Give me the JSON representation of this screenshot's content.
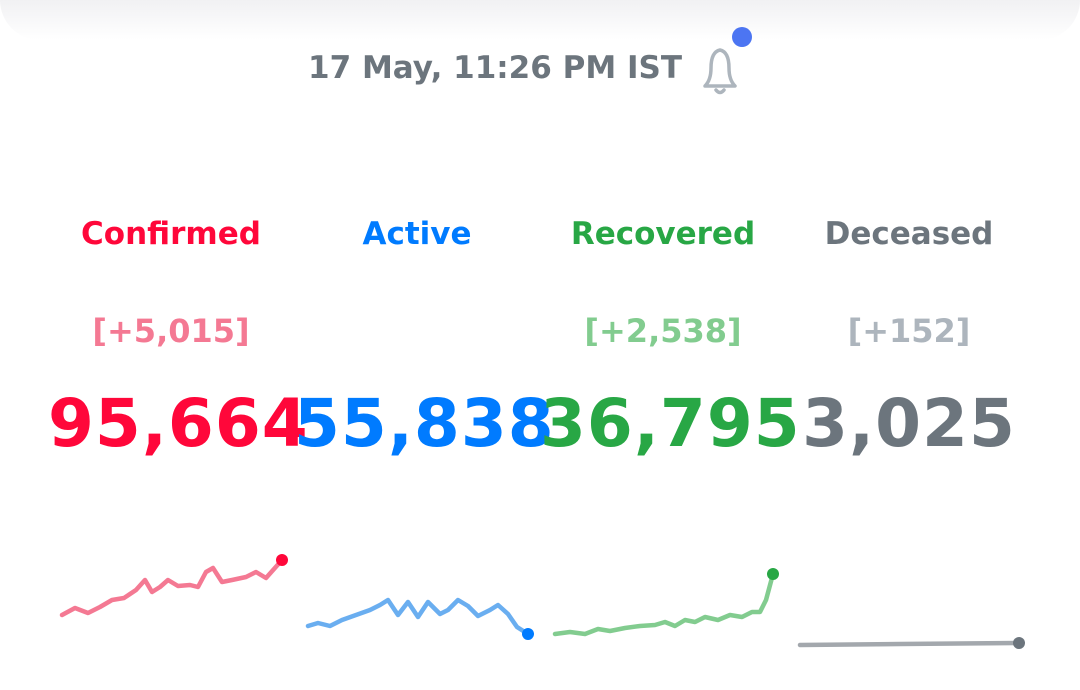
{
  "header": {
    "timestamp": "17 May, 11:26 PM IST"
  },
  "stats": [
    {
      "label": "Confirmed",
      "delta": "[+5,015]",
      "value": "95,664"
    },
    {
      "label": "Active",
      "value": "55,838"
    },
    {
      "label": "Recovered",
      "delta": "[+2,538]",
      "value": "36,795"
    },
    {
      "label": "Deceased",
      "delta": "[+152]",
      "value": "3,025"
    }
  ]
}
